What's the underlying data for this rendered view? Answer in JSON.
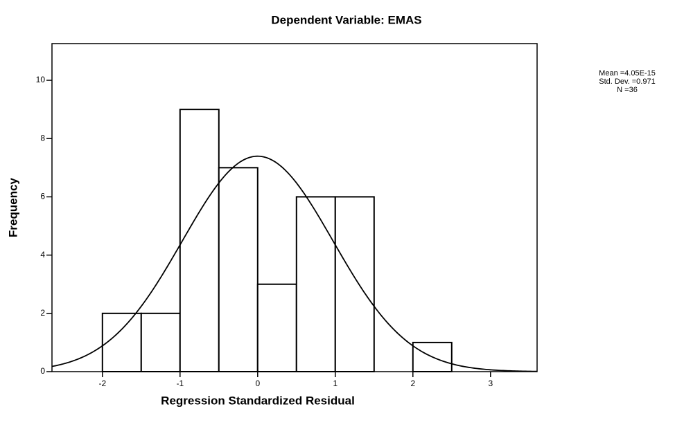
{
  "chart_data": {
    "type": "histogram",
    "title": "Dependent Variable: EMAS",
    "x_label": "Regression Standardized Residual",
    "y_label": "Frequency",
    "bins": [
      -2,
      -1.5,
      -1,
      -0.5,
      0,
      0.5,
      1,
      1.5,
      2,
      2.5
    ],
    "values": [
      2,
      2,
      9,
      7,
      3,
      6,
      6,
      0,
      1
    ],
    "color": "#ffffff",
    "edge_color": "#000000",
    "xlim": [
      -2.65,
      3.6
    ],
    "ylim": [
      0,
      11.26
    ],
    "xticks": [
      -2,
      -1,
      0,
      1,
      2,
      3
    ],
    "yticks": [
      0,
      2,
      4,
      6,
      8,
      10
    ],
    "grid": false,
    "annotations": [
      "Mean =4.05E-15",
      "Std. Dev. =0.971",
      "N =36"
    ],
    "normal_curve": {
      "mean": 4.05e-15,
      "std_dev": 0.971,
      "n": 36
    }
  }
}
